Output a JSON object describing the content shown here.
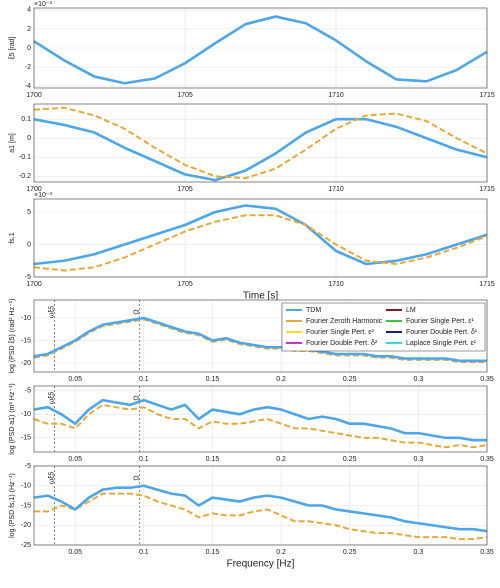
{
  "chart_data": [
    {
      "type": "line",
      "ylabel": "ξ5 [rad]",
      "exponent_label": "×10⁻³",
      "grid": true,
      "x": [
        1700,
        1701,
        1702,
        1703,
        1704,
        1705,
        1706,
        1707,
        1708,
        1709,
        1710,
        1711,
        1712,
        1713,
        1714,
        1715
      ],
      "xlim": [
        1700,
        1715
      ],
      "xticks": [
        1700,
        1705,
        1710,
        1715
      ],
      "ylim": [
        -4.2,
        4.2
      ],
      "yticks": [
        -4,
        -2,
        0,
        2,
        4
      ],
      "series": [
        {
          "name": "TDM",
          "color": "#4da6e8",
          "dash": false,
          "values": [
            0.7,
            -1.3,
            -3.0,
            -3.7,
            -3.2,
            -1.6,
            0.5,
            2.5,
            3.3,
            2.6,
            0.8,
            -1.4,
            -3.3,
            -3.5,
            -2.3,
            -0.4
          ]
        }
      ]
    },
    {
      "type": "line",
      "ylabel": "a1 [m]",
      "grid": true,
      "x": [
        1700,
        1701,
        1702,
        1703,
        1704,
        1705,
        1706,
        1707,
        1708,
        1709,
        1710,
        1711,
        1712,
        1713,
        1714,
        1715
      ],
      "xlim": [
        1700,
        1715
      ],
      "xticks": [
        1700,
        1705,
        1710,
        1715
      ],
      "ylim": [
        -0.23,
        0.18
      ],
      "yticks": [
        -0.2,
        -0.1,
        0,
        0.1
      ],
      "series": [
        {
          "name": "TDM",
          "color": "#4da6e8",
          "dash": false,
          "values": [
            0.1,
            0.07,
            0.03,
            -0.05,
            -0.12,
            -0.19,
            -0.22,
            -0.17,
            -0.08,
            0.03,
            0.1,
            0.1,
            0.06,
            0,
            -0.06,
            -0.1
          ]
        },
        {
          "name": "Fourier Zeroth Harmonic",
          "color": "#e8a838",
          "dash": true,
          "values": [
            0.15,
            0.16,
            0.12,
            0.05,
            -0.05,
            -0.14,
            -0.2,
            -0.21,
            -0.16,
            -0.06,
            0.05,
            0.12,
            0.13,
            0.09,
            0,
            -0.08
          ]
        }
      ]
    },
    {
      "type": "line",
      "ylabel": "fs,1",
      "exponent_label": "×10⁻³",
      "xlabel": "Time [s]",
      "grid": true,
      "x": [
        1700,
        1701,
        1702,
        1703,
        1704,
        1705,
        1706,
        1707,
        1708,
        1709,
        1710,
        1711,
        1712,
        1713,
        1714,
        1715
      ],
      "xlim": [
        1700,
        1715
      ],
      "xticks": [
        1700,
        1705,
        1710,
        1715
      ],
      "ylim": [
        -5,
        7
      ],
      "yticks": [
        -5,
        0,
        5
      ],
      "series": [
        {
          "name": "TDM",
          "color": "#4da6e8",
          "dash": false,
          "values": [
            -3,
            -2.5,
            -1.5,
            0,
            1.5,
            3,
            5,
            6,
            5.5,
            3,
            -1,
            -3,
            -2.5,
            -1.5,
            0,
            1.5
          ]
        },
        {
          "name": "Fourier Zeroth Harmonic",
          "color": "#e8a838",
          "dash": true,
          "values": [
            -3.5,
            -4,
            -3.5,
            -2,
            0,
            2,
            3.5,
            4.5,
            4.5,
            3,
            0,
            -2.5,
            -3,
            -2,
            -0.5,
            1.3
          ]
        }
      ]
    },
    {
      "type": "line",
      "ylabel": "log (PSD ξ5) (rad² Hz⁻¹)",
      "grid": true,
      "x": [
        0.02,
        0.03,
        0.04,
        0.05,
        0.06,
        0.07,
        0.08,
        0.09,
        0.1,
        0.11,
        0.12,
        0.13,
        0.14,
        0.15,
        0.16,
        0.17,
        0.18,
        0.19,
        0.2,
        0.21,
        0.22,
        0.23,
        0.24,
        0.25,
        0.26,
        0.27,
        0.28,
        0.29,
        0.3,
        0.31,
        0.32,
        0.33,
        0.34,
        0.35
      ],
      "xlim": [
        0.02,
        0.35
      ],
      "xticks": [
        0.05,
        0.1,
        0.15,
        0.2,
        0.25,
        0.3,
        0.35
      ],
      "ylim": [
        -22,
        -6
      ],
      "yticks": [
        -20,
        -15,
        -10
      ],
      "vlines": [
        {
          "x": 0.035,
          "label": "ωξ5"
        },
        {
          "x": 0.097,
          "label": "Ω"
        }
      ],
      "legend": [
        {
          "name": "TDM",
          "color": "#4da6e8"
        },
        {
          "name": "LM",
          "color": "#8b1a1a"
        },
        {
          "name": "Fourier Zeroth Harmonic",
          "color": "#e8a838"
        },
        {
          "name": "Fourier Single Pert. ε¹",
          "color": "#33cc33"
        },
        {
          "name": "Fourier Single Pert. ε²",
          "color": "#f2e033"
        },
        {
          "name": "Fourier Double Pert. δ¹",
          "color": "#1a1a8b"
        },
        {
          "name": "Fourier Double Pert. δ²",
          "color": "#cc33cc"
        },
        {
          "name": "Laplace Single Pert. ε¹",
          "color": "#33dddd"
        }
      ],
      "series": [
        {
          "name": "Fourier Zeroth Harmonic",
          "color": "#e8a838",
          "dash": true,
          "values": [
            -18.8,
            -18.3,
            -16.8,
            -15.3,
            -13.3,
            -11.8,
            -11.3,
            -10.8,
            -10.3,
            -11.3,
            -12.3,
            -13.3,
            -13.8,
            -15.3,
            -14.8,
            -15.8,
            -16.3,
            -16.8,
            -16.8,
            -17.3,
            -17.3,
            -17.8,
            -18.3,
            -18.3,
            -18.3,
            -18.8,
            -18.8,
            -19.3,
            -19.3,
            -19.3,
            -19.3,
            -19.8,
            -19.8,
            -19.8
          ]
        },
        {
          "name": "TDM",
          "color": "#4da6e8",
          "dash": false,
          "values": [
            -18.5,
            -18,
            -16.5,
            -15,
            -13,
            -11.5,
            -11,
            -10.5,
            -10,
            -11,
            -12,
            -13,
            -13.5,
            -15,
            -14.5,
            -15.5,
            -16,
            -16.5,
            -16.5,
            -17,
            -17,
            -17.5,
            -18,
            -18,
            -18,
            -18.5,
            -18.5,
            -19,
            -19,
            -19,
            -19,
            -19.5,
            -19.5,
            -19.5
          ]
        }
      ]
    },
    {
      "type": "line",
      "ylabel": "log (PSD a1) (m² Hz⁻¹)",
      "grid": true,
      "x": [
        0.02,
        0.03,
        0.04,
        0.05,
        0.06,
        0.07,
        0.08,
        0.09,
        0.1,
        0.11,
        0.12,
        0.13,
        0.14,
        0.15,
        0.16,
        0.17,
        0.18,
        0.19,
        0.2,
        0.21,
        0.22,
        0.23,
        0.24,
        0.25,
        0.26,
        0.27,
        0.28,
        0.29,
        0.3,
        0.31,
        0.32,
        0.33,
        0.34,
        0.35
      ],
      "xlim": [
        0.02,
        0.35
      ],
      "xticks": [
        0.05,
        0.1,
        0.15,
        0.2,
        0.25,
        0.3,
        0.35
      ],
      "ylim": [
        -18,
        -4
      ],
      "yticks": [
        -15,
        -10,
        -5
      ],
      "vlines": [
        {
          "x": 0.035,
          "label": "ωξ5"
        },
        {
          "x": 0.097,
          "label": "Ω"
        }
      ],
      "series": [
        {
          "name": "Fourier Zeroth Harmonic",
          "color": "#e8a838",
          "dash": true,
          "values": [
            -11,
            -12,
            -12,
            -13,
            -10,
            -8,
            -8.5,
            -9,
            -8.5,
            -10,
            -11,
            -11,
            -13,
            -11.5,
            -12,
            -12,
            -11.5,
            -11,
            -12,
            -13,
            -13,
            -13.5,
            -14,
            -14.5,
            -15,
            -15,
            -15.5,
            -16,
            -16,
            -16.5,
            -17,
            -16.5,
            -17,
            -16.5
          ]
        },
        {
          "name": "TDM",
          "color": "#4da6e8",
          "dash": false,
          "values": [
            -9,
            -8.5,
            -10,
            -12,
            -9,
            -7,
            -7.5,
            -8,
            -7,
            -8,
            -9,
            -8,
            -11,
            -9,
            -9.5,
            -10,
            -9,
            -8.5,
            -9,
            -10,
            -11,
            -10.5,
            -11,
            -12,
            -12,
            -12.5,
            -13,
            -14,
            -14,
            -14.5,
            -15,
            -15,
            -15.5,
            -15.5
          ]
        }
      ]
    },
    {
      "type": "line",
      "ylabel": "log (PSD fs,1) (Hz⁻¹)",
      "xlabel": "Frequency [Hz]",
      "grid": true,
      "x": [
        0.02,
        0.03,
        0.04,
        0.05,
        0.06,
        0.07,
        0.08,
        0.09,
        0.1,
        0.11,
        0.12,
        0.13,
        0.14,
        0.15,
        0.16,
        0.17,
        0.18,
        0.19,
        0.2,
        0.21,
        0.22,
        0.23,
        0.24,
        0.25,
        0.26,
        0.27,
        0.28,
        0.29,
        0.3,
        0.31,
        0.32,
        0.33,
        0.34,
        0.35
      ],
      "xlim": [
        0.02,
        0.35
      ],
      "xticks": [
        0.05,
        0.1,
        0.15,
        0.2,
        0.25,
        0.3,
        0.35
      ],
      "ylim": [
        -25,
        -5
      ],
      "yticks": [
        -25,
        -20,
        -15,
        -10,
        -5
      ],
      "vlines": [
        {
          "x": 0.035,
          "label": "ωξ5"
        },
        {
          "x": 0.097,
          "label": "Ω"
        }
      ],
      "series": [
        {
          "name": "Fourier Zeroth Harmonic",
          "color": "#e8a838",
          "dash": true,
          "values": [
            -16.5,
            -16.5,
            -15,
            -16,
            -14,
            -12,
            -12,
            -12,
            -12.5,
            -14,
            -15,
            -16,
            -18,
            -17,
            -17.5,
            -17.5,
            -16.5,
            -16,
            -17.5,
            -19,
            -19,
            -19.5,
            -20,
            -21,
            -21.5,
            -22,
            -22,
            -22.5,
            -23,
            -23,
            -23,
            -23.5,
            -23.5,
            -23
          ]
        },
        {
          "name": "TDM",
          "color": "#4da6e8",
          "dash": false,
          "values": [
            -13,
            -12.5,
            -14,
            -16,
            -13,
            -11,
            -10.5,
            -10.5,
            -10,
            -11,
            -12,
            -12.5,
            -15,
            -13,
            -13.5,
            -14,
            -13,
            -12.5,
            -13,
            -14,
            -15,
            -15,
            -16,
            -16.5,
            -17,
            -17.5,
            -18,
            -19,
            -19.5,
            -20,
            -20.5,
            -21,
            -21,
            -21.5
          ]
        }
      ]
    }
  ]
}
